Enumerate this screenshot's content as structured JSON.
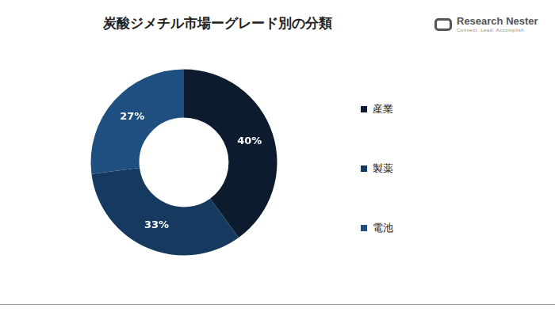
{
  "chart_data": {
    "type": "doughnut",
    "title": "炭酸ジメチル市場ーグレード別の分類",
    "annotations": [
      "Research Nester",
      "Connect. Lead. Accomplish"
    ],
    "categories": [
      "産業",
      "製薬",
      "電池"
    ],
    "values": [
      40,
      33,
      27
    ],
    "value_labels": [
      "40%",
      "33%",
      "27%"
    ],
    "colors": [
      "#0d1b2e",
      "#163a5f",
      "#1f4e80"
    ],
    "data_labels": true,
    "legend": "right"
  }
}
